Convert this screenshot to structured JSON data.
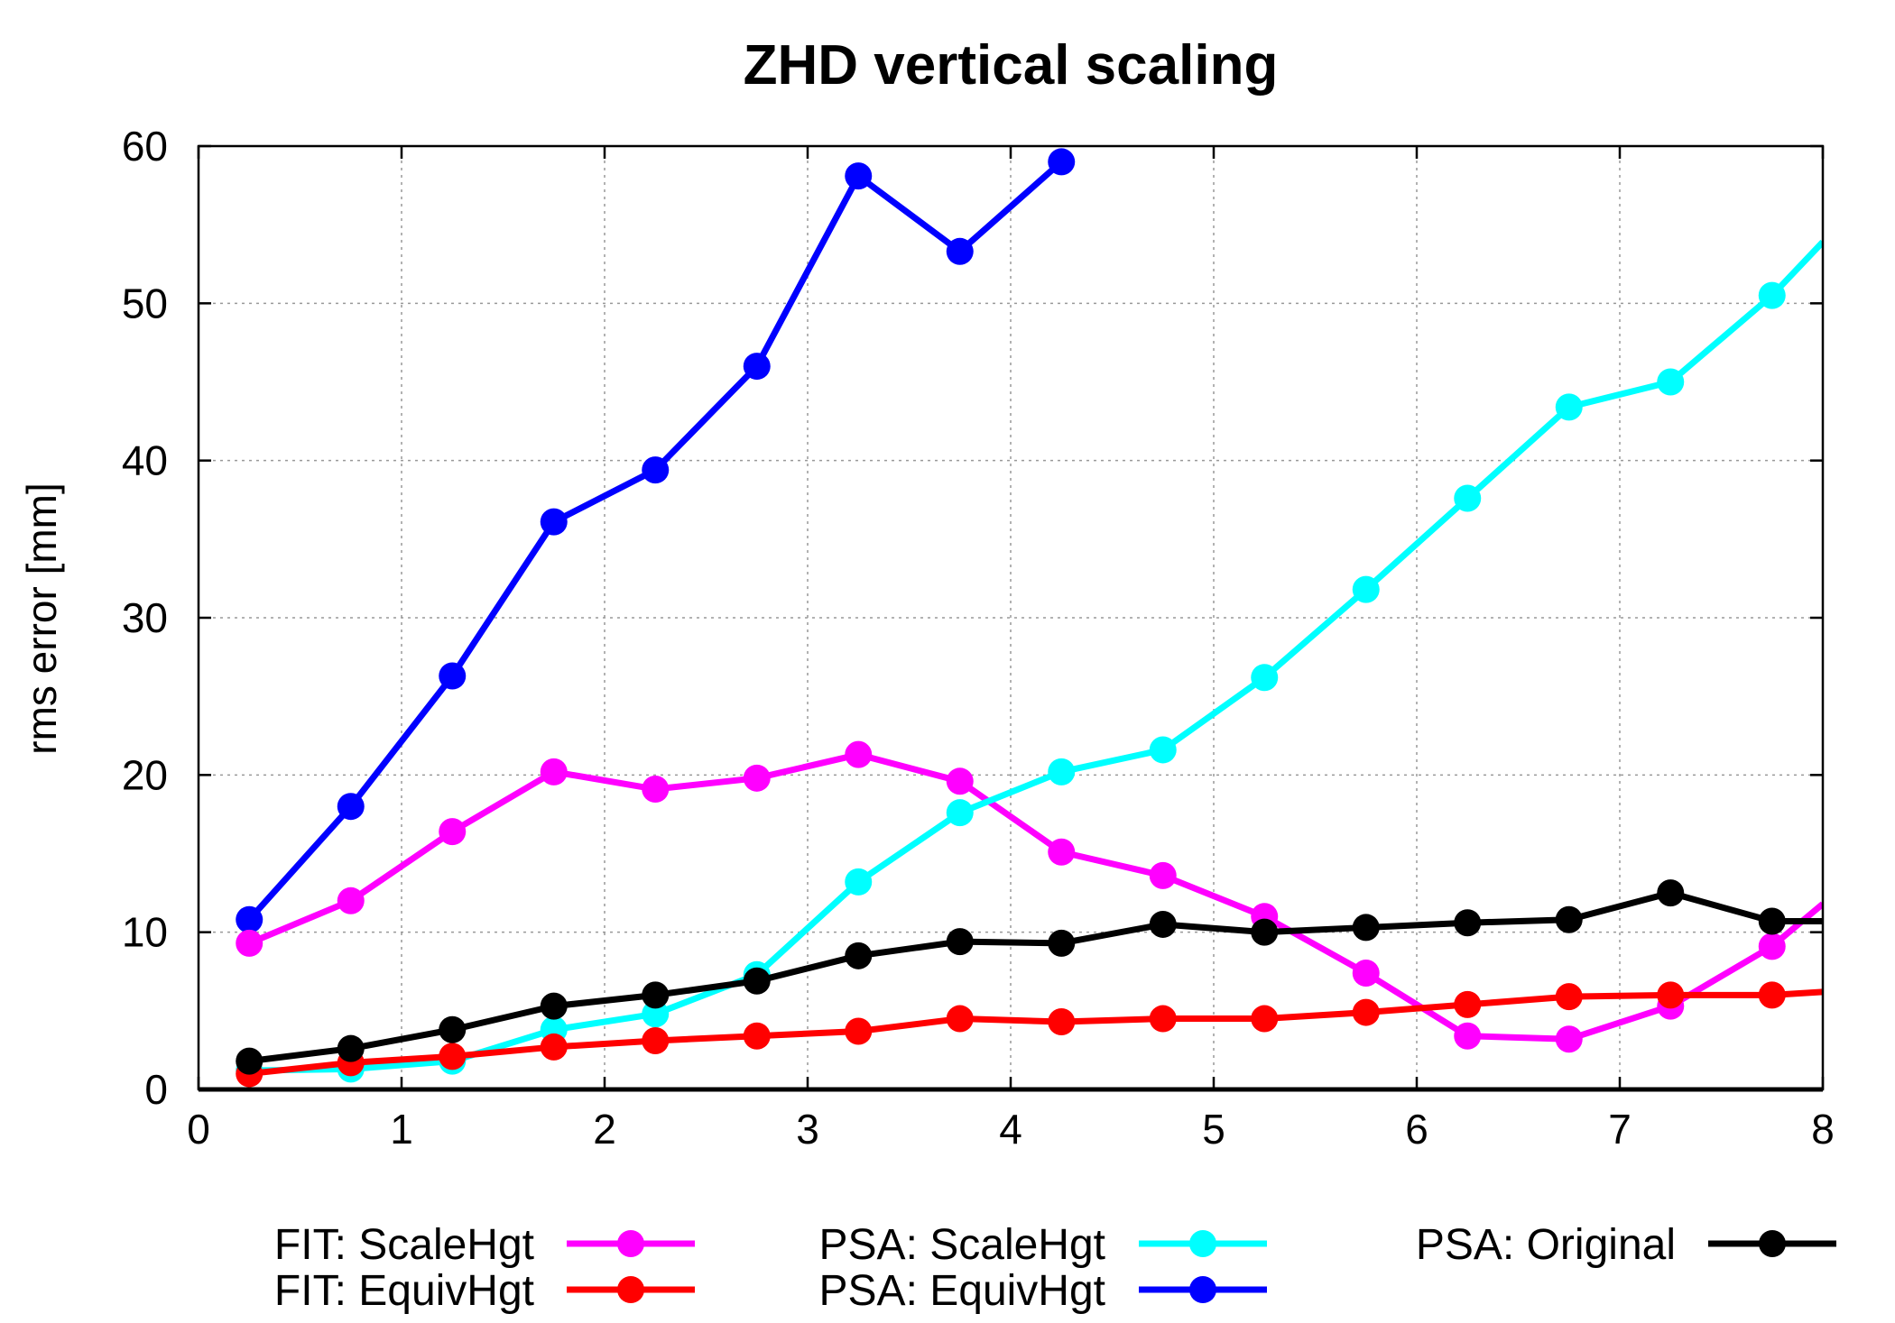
{
  "chart_data": {
    "type": "line",
    "title": "ZHD vertical scaling",
    "xlabel": "",
    "ylabel": "rms error [mm]",
    "xlim": [
      0,
      8
    ],
    "ylim": [
      0,
      60
    ],
    "x_ticks": [
      "0",
      "1",
      "2",
      "3",
      "4",
      "5",
      "6",
      "7",
      "8"
    ],
    "y_ticks": [
      "0",
      "10",
      "20",
      "30",
      "40",
      "50",
      "60"
    ],
    "grid": true,
    "legend_position": "bottom",
    "x": [
      0.25,
      0.75,
      1.25,
      1.75,
      2.25,
      2.75,
      3.25,
      3.75,
      4.25,
      4.75,
      5.25,
      5.75,
      6.25,
      6.75,
      7.25,
      7.75,
      8.0
    ],
    "series": [
      {
        "name": "FIT: ScaleHgt",
        "color": "#ff00ff",
        "values": [
          9.3,
          12.0,
          16.4,
          20.2,
          19.1,
          19.8,
          21.3,
          19.6,
          15.1,
          13.6,
          11.0,
          7.4,
          3.4,
          3.2,
          5.3,
          9.1,
          11.8
        ]
      },
      {
        "name": "FIT: EquivHgt",
        "color": "#ff0000",
        "values": [
          1.0,
          1.7,
          2.1,
          2.7,
          3.1,
          3.4,
          3.7,
          4.5,
          4.3,
          4.5,
          4.5,
          4.9,
          5.4,
          5.9,
          6.0,
          6.0,
          6.2
        ]
      },
      {
        "name": "PSA: ScaleHgt",
        "color": "#00ffff",
        "values": [
          1.2,
          1.3,
          1.8,
          3.8,
          4.8,
          7.3,
          13.2,
          17.6,
          20.2,
          21.6,
          26.2,
          31.8,
          37.6,
          43.4,
          45.0,
          50.5,
          53.9
        ]
      },
      {
        "name": "PSA: EquivHgt",
        "color": "#0000ff",
        "values": [
          10.8,
          18.0,
          26.3,
          36.1,
          39.4,
          46.0,
          58.1,
          53.3,
          59.0,
          null,
          null,
          null,
          null,
          null,
          null,
          null,
          null
        ]
      },
      {
        "name": "PSA: Original",
        "color": "#000000",
        "values": [
          1.8,
          2.6,
          3.8,
          5.3,
          6.0,
          6.9,
          8.5,
          9.4,
          9.3,
          10.5,
          10.0,
          10.3,
          10.6,
          10.8,
          12.5,
          10.7,
          10.7
        ]
      }
    ],
    "legend": [
      {
        "label": "FIT: ScaleHgt",
        "color": "#ff00ff"
      },
      {
        "label": "FIT: EquivHgt",
        "color": "#ff0000"
      },
      {
        "label": "PSA: ScaleHgt",
        "color": "#00ffff"
      },
      {
        "label": "PSA: EquivHgt",
        "color": "#0000ff"
      },
      {
        "label": "PSA: Original",
        "color": "#000000"
      }
    ]
  }
}
